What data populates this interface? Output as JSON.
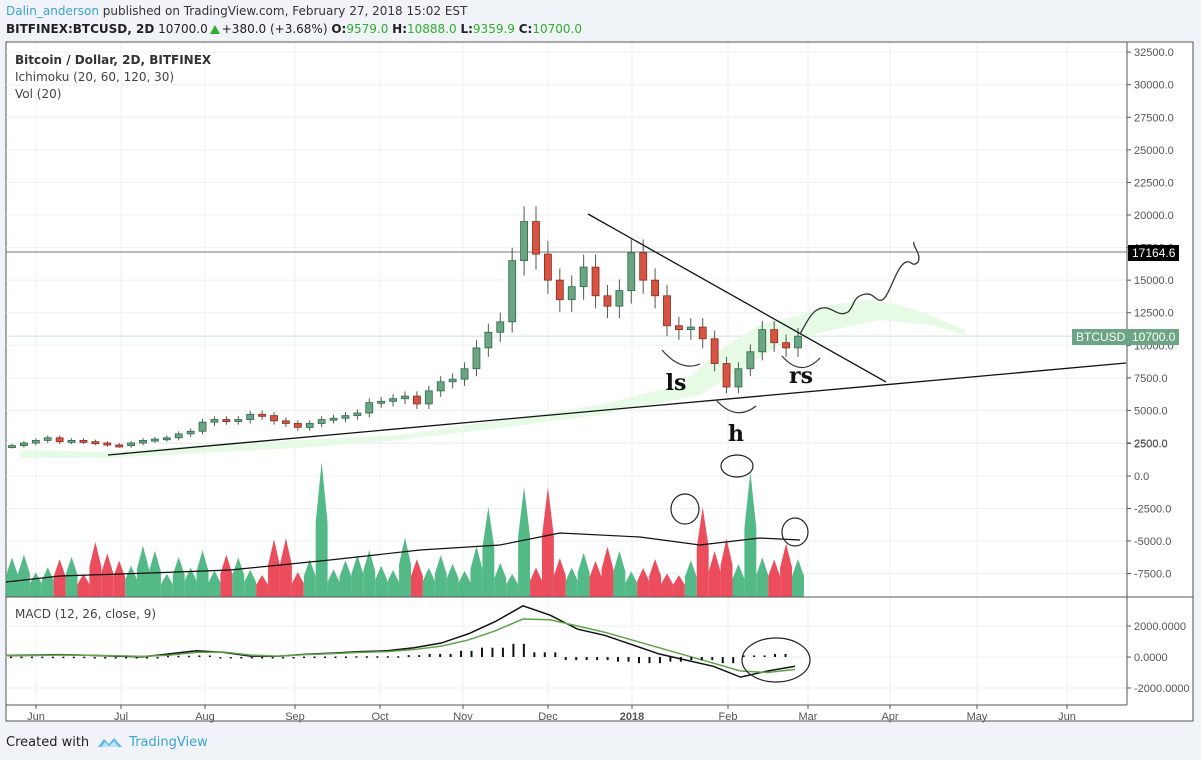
{
  "header": {
    "author": "Dalin_anderson",
    "published_text": "published on TradingView.com, February 27, 2018 15:02 EST",
    "symbol": "BITFINEX:BTCUSD, 2D",
    "last": "10700.0",
    "change": "+380.0 (+3.68%)",
    "open_label": "O:",
    "open": "9579.0",
    "high_label": "H:",
    "high": "10888.0",
    "low_label": "L:",
    "low": "9359.9",
    "close_label": "C:",
    "close": "10700.0"
  },
  "legend": {
    "title": "Bitcoin / Dollar, 2D, BITFINEX",
    "ichimoku": "Ichimoku (20, 60, 120, 30)",
    "volume": "Vol (20)",
    "macd": "MACD (12, 26, close, 9)"
  },
  "price_tags": {
    "horizontal_line": "17164.6",
    "symbol_label": "BTCUSD",
    "last_price": "10700.0"
  },
  "annotations": [
    "ls",
    "h",
    "rs"
  ],
  "footer": {
    "created_with": "Created with",
    "brand": "TradingView"
  },
  "colors": {
    "up": "#53b987",
    "down": "#eb4d5c",
    "candle_up": "#6ba583",
    "candle_down": "#d75442",
    "cloud": "#e6fae6",
    "signal": "#5fa34a",
    "link": "#3ba3d4"
  },
  "chart_data": [
    {
      "type": "candlestick",
      "title": "Bitcoin / Dollar, 2D, BITFINEX",
      "x_ticks": [
        "Jun",
        "Jul",
        "Aug",
        "Sep",
        "Oct",
        "Nov",
        "Dec",
        "2018",
        "Feb",
        "Mar",
        "Apr",
        "May",
        "Jun"
      ],
      "y_ticks": [
        2500,
        5000,
        7500,
        10000,
        12500,
        15000,
        17500,
        20000,
        22500,
        25000,
        27500,
        30000,
        32500
      ],
      "ylim": [
        0,
        33000
      ],
      "horizontal_line": 17164.6,
      "last_price": 10700.0,
      "closes_approx": [
        2300,
        2500,
        2700,
        2900,
        2600,
        2700,
        2600,
        2500,
        2350,
        2300,
        2500,
        2700,
        2800,
        2900,
        3200,
        3400,
        4100,
        4300,
        4200,
        4300,
        4700,
        4600,
        4200,
        4000,
        3700,
        4000,
        4300,
        4400,
        4600,
        4800,
        5600,
        5700,
        5900,
        6100,
        5500,
        6500,
        7200,
        7400,
        8200,
        9800,
        11000,
        11800,
        16500,
        19500,
        17000,
        15000,
        13500,
        14500,
        16000,
        13800,
        13000,
        14200,
        17100,
        15000,
        13800,
        11500,
        11200,
        11400,
        10500,
        8600,
        6800,
        8200,
        9500,
        11200,
        10200,
        9800,
        10700
      ]
    },
    {
      "type": "area",
      "title": "Vol (20)",
      "y_ticks": [
        -7500,
        -5000,
        -2500,
        0,
        2500
      ]
    },
    {
      "type": "line",
      "title": "MACD (12, 26, close, 9)",
      "y_ticks": [
        -2000,
        0,
        2000
      ],
      "series": [
        {
          "name": "MACD",
          "values": [
            100,
            120,
            150,
            110,
            60,
            10,
            200,
            400,
            300,
            60,
            50,
            180,
            250,
            350,
            400,
            600,
            900,
            1500,
            2300,
            3300,
            2700,
            1800,
            1400,
            800,
            200,
            -200,
            -600,
            -1300,
            -900,
            -600
          ]
        },
        {
          "name": "Signal",
          "values": [
            80,
            100,
            130,
            110,
            80,
            40,
            120,
            300,
            320,
            120,
            60,
            150,
            220,
            300,
            350,
            480,
            700,
            1100,
            1700,
            2450,
            2400,
            2000,
            1600,
            1100,
            600,
            100,
            -400,
            -900,
            -1000,
            -800
          ]
        }
      ]
    }
  ]
}
